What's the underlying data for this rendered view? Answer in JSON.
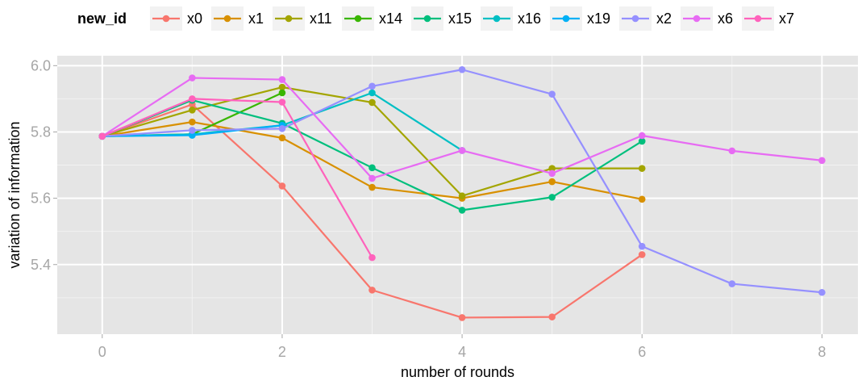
{
  "chart_data": {
    "type": "line",
    "xlabel": "number of rounds",
    "ylabel": "variation of information",
    "xlim": [
      -0.5,
      8.4
    ],
    "ylim": [
      5.19,
      6.03
    ],
    "x_ticks": [
      0,
      2,
      4,
      6,
      8
    ],
    "y_ticks": [
      5.4,
      5.6,
      5.8,
      6.0
    ],
    "x_tick_labels": [
      "0",
      "2",
      "4",
      "6",
      "8"
    ],
    "y_tick_labels": [
      "5.4",
      "5.6",
      "5.8",
      "6.0"
    ],
    "grid": true,
    "panel_background": "#e5e5e5",
    "legend": {
      "title": "new_id",
      "position": "top"
    },
    "series": [
      {
        "name": "x0",
        "color": "#f8766d",
        "x": [
          0,
          1,
          2,
          3,
          4,
          5,
          6
        ],
        "y": [
          5.787,
          5.883,
          5.637,
          5.323,
          5.24,
          5.242,
          5.43
        ]
      },
      {
        "name": "x1",
        "color": "#d89000",
        "x": [
          0,
          1,
          2,
          3,
          4,
          5,
          6
        ],
        "y": [
          5.787,
          5.83,
          5.782,
          5.633,
          5.6,
          5.65,
          5.597
        ]
      },
      {
        "name": "x11",
        "color": "#a3a500",
        "x": [
          0,
          1,
          2,
          3,
          4,
          5,
          6
        ],
        "y": [
          5.787,
          5.866,
          5.935,
          5.889,
          5.607,
          5.69,
          5.69
        ]
      },
      {
        "name": "x14",
        "color": "#39b600",
        "x": [
          0,
          1,
          2
        ],
        "y": [
          5.787,
          5.793,
          5.918
        ]
      },
      {
        "name": "x15",
        "color": "#00bf7d",
        "x": [
          0,
          1,
          2,
          3,
          4,
          5,
          6
        ],
        "y": [
          5.787,
          5.896,
          5.826,
          5.692,
          5.564,
          5.603,
          5.772
        ]
      },
      {
        "name": "x16",
        "color": "#00bfc4",
        "x": [
          0,
          1,
          2,
          3,
          4
        ],
        "y": [
          5.787,
          5.793,
          5.82,
          5.918,
          5.744
        ]
      },
      {
        "name": "x19",
        "color": "#00b0f6",
        "x": [
          0,
          1,
          2
        ],
        "y": [
          5.787,
          5.79,
          5.82
        ]
      },
      {
        "name": "x2",
        "color": "#9590ff",
        "x": [
          0,
          1,
          2,
          3,
          4,
          5,
          6,
          7,
          8
        ],
        "y": [
          5.787,
          5.805,
          5.81,
          5.938,
          5.988,
          5.914,
          5.455,
          5.342,
          5.316
        ]
      },
      {
        "name": "x6",
        "color": "#e76bf3",
        "x": [
          0,
          1,
          2,
          3,
          4,
          5,
          6,
          7,
          8
        ],
        "y": [
          5.787,
          5.963,
          5.958,
          5.66,
          5.744,
          5.675,
          5.789,
          5.743,
          5.714
        ]
      },
      {
        "name": "x7",
        "color": "#ff62bc",
        "x": [
          0,
          1,
          2,
          3
        ],
        "y": [
          5.787,
          5.9,
          5.89,
          5.421
        ]
      }
    ]
  }
}
